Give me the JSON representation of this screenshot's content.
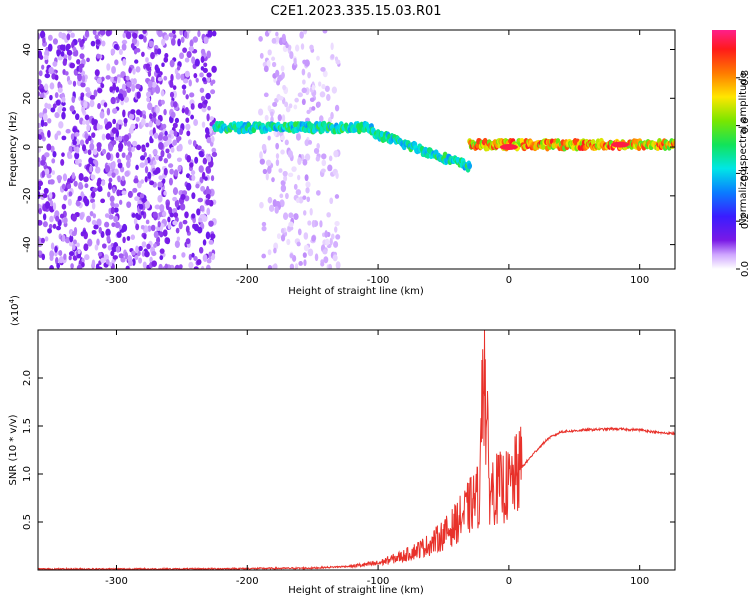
{
  "title": "C2E1.2023.335.15.03.R01",
  "chart_data": [
    {
      "type": "heatmap",
      "xlabel": "Height of straight line (km)",
      "ylabel": "Frequency (Hz)",
      "xlim": [
        -360,
        127
      ],
      "ylim": [
        -50,
        48
      ],
      "xticks": [
        -300,
        -200,
        -100,
        0,
        100
      ],
      "yticks": [
        -40,
        -20,
        0,
        20,
        40
      ],
      "grid": false,
      "colorbar": {
        "label": "Normalized spectral amplitude",
        "range": [
          0,
          1
        ],
        "ticks": [
          0.0,
          0.2,
          0.4,
          0.6,
          0.8
        ],
        "colormap": "rainbow (white-purple-blue-cyan-green-yellow-red-pink)"
      },
      "features": [
        {
          "name": "noise",
          "x_range": [
            -360,
            -225
          ],
          "y_range": [
            -50,
            48
          ],
          "amplitude": 0.12
        },
        {
          "name": "noise",
          "x_range": [
            -190,
            -130
          ],
          "y_range": [
            -50,
            48
          ],
          "amplitude": 0.06
        },
        {
          "name": "signal",
          "x_range": [
            -225,
            -105
          ],
          "freq_hz": 8,
          "amplitude": 0.45
        },
        {
          "name": "signal",
          "x_range": [
            -105,
            -30
          ],
          "freq_hz_start": 6,
          "freq_hz_end": -8,
          "amplitude": 0.45
        },
        {
          "name": "signal",
          "x_range": [
            -30,
            127
          ],
          "freq_hz": 1,
          "amplitude": 0.75
        },
        {
          "name": "peak",
          "x": 0,
          "freq_hz": 0,
          "amplitude": 0.95
        },
        {
          "name": "peak",
          "x": 85,
          "freq_hz": 1,
          "amplitude": 0.95
        }
      ]
    },
    {
      "type": "line",
      "xlabel": "Height of straight line (km)",
      "ylabel": "SNR (10 * v/v)",
      "multiplier": "(x10",
      "multiplier_exp": "4",
      "multiplier_close": ")",
      "xlim": [
        -360,
        127
      ],
      "ylim": [
        0.0,
        2.5
      ],
      "xticks": [
        -300,
        -200,
        -100,
        0,
        100
      ],
      "yticks": [
        0.5,
        1.0,
        1.5,
        2.0
      ],
      "grid": false,
      "series": [
        {
          "color": "#e8312a",
          "x": [
            -360,
            -250,
            -150,
            -120,
            -100,
            -80,
            -60,
            -45,
            -35,
            -28,
            -22,
            -20,
            -15,
            -8,
            0,
            10,
            20,
            30,
            40,
            60,
            80,
            100,
            110,
            115,
            127
          ],
          "y": [
            0.01,
            0.01,
            0.02,
            0.04,
            0.07,
            0.15,
            0.27,
            0.42,
            0.57,
            0.7,
            0.8,
            2.5,
            0.85,
            0.85,
            0.87,
            1.07,
            1.23,
            1.37,
            1.44,
            1.46,
            1.47,
            1.46,
            1.44,
            1.43,
            1.42
          ]
        }
      ]
    }
  ]
}
